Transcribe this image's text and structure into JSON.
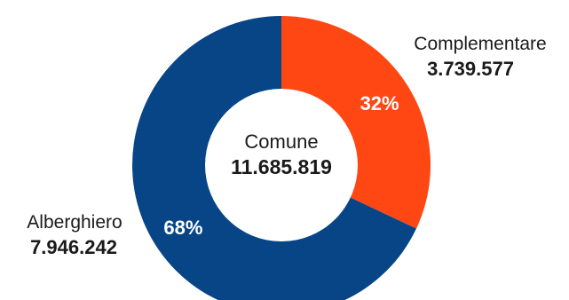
{
  "chart_data": {
    "type": "pie",
    "variant": "donut",
    "center": {
      "label": "Comune",
      "value": "11.685.819"
    },
    "slices": [
      {
        "key": "complementare",
        "name": "Complementare",
        "value": 3739577,
        "value_label": "3.739.577",
        "percent_label": "32%",
        "color": "#FF4713"
      },
      {
        "key": "alberghiero",
        "name": "Alberghiero",
        "value": 7946242,
        "value_label": "7.946.242",
        "percent_label": "68%",
        "color": "#074586"
      }
    ]
  }
}
